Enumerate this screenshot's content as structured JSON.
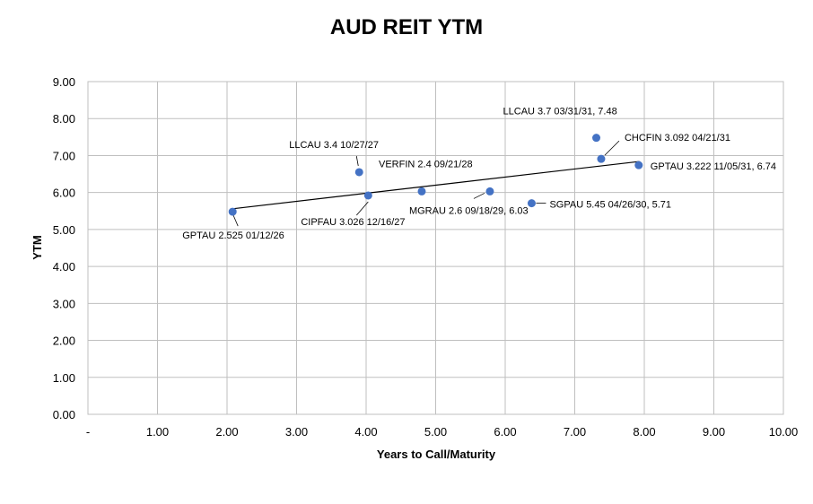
{
  "chart_data": {
    "type": "scatter",
    "title": "AUD REIT YTM",
    "xlabel": "Years to Call/Maturity",
    "ylabel": "YTM",
    "xlim": [
      0,
      10
    ],
    "ylim": [
      0,
      9
    ],
    "x_ticks": [
      "-",
      "1.00",
      "2.00",
      "3.00",
      "4.00",
      "5.00",
      "6.00",
      "7.00",
      "8.00",
      "9.00",
      "10.00"
    ],
    "y_ticks": [
      "0.00",
      "1.00",
      "2.00",
      "3.00",
      "4.00",
      "5.00",
      "6.00",
      "7.00",
      "8.00",
      "9.00"
    ],
    "grid": true,
    "marker_color": "#4472c4",
    "trendline": {
      "type": "linear",
      "color": "#000000",
      "x_range": [
        2.08,
        7.93
      ],
      "y_range": [
        5.56,
        6.84
      ]
    },
    "points": [
      {
        "x": 2.08,
        "y": 5.48,
        "label": "GPTAU 2.525 01/12/26"
      },
      {
        "x": 3.9,
        "y": 6.55,
        "label": "LLCAU 3.4 10/27/27"
      },
      {
        "x": 4.03,
        "y": 5.92,
        "label": "CIPFAU 3.026 12/16/27"
      },
      {
        "x": 4.8,
        "y": 6.03,
        "label": "VERFIN 2.4 09/21/28"
      },
      {
        "x": 5.78,
        "y": 6.03,
        "label": "MGRAU 2.6 09/18/29, 6.03"
      },
      {
        "x": 6.38,
        "y": 5.71,
        "label": "SGPAU 5.45 04/26/30, 5.71"
      },
      {
        "x": 7.31,
        "y": 7.48,
        "label": "LLCAU 3.7 03/31/31, 7.48"
      },
      {
        "x": 7.38,
        "y": 6.91,
        "label": "CHCFIN 3.092 04/21/31"
      },
      {
        "x": 7.92,
        "y": 6.74,
        "label": "GPTAU 3.222 11/05/31, 6.74"
      }
    ]
  }
}
